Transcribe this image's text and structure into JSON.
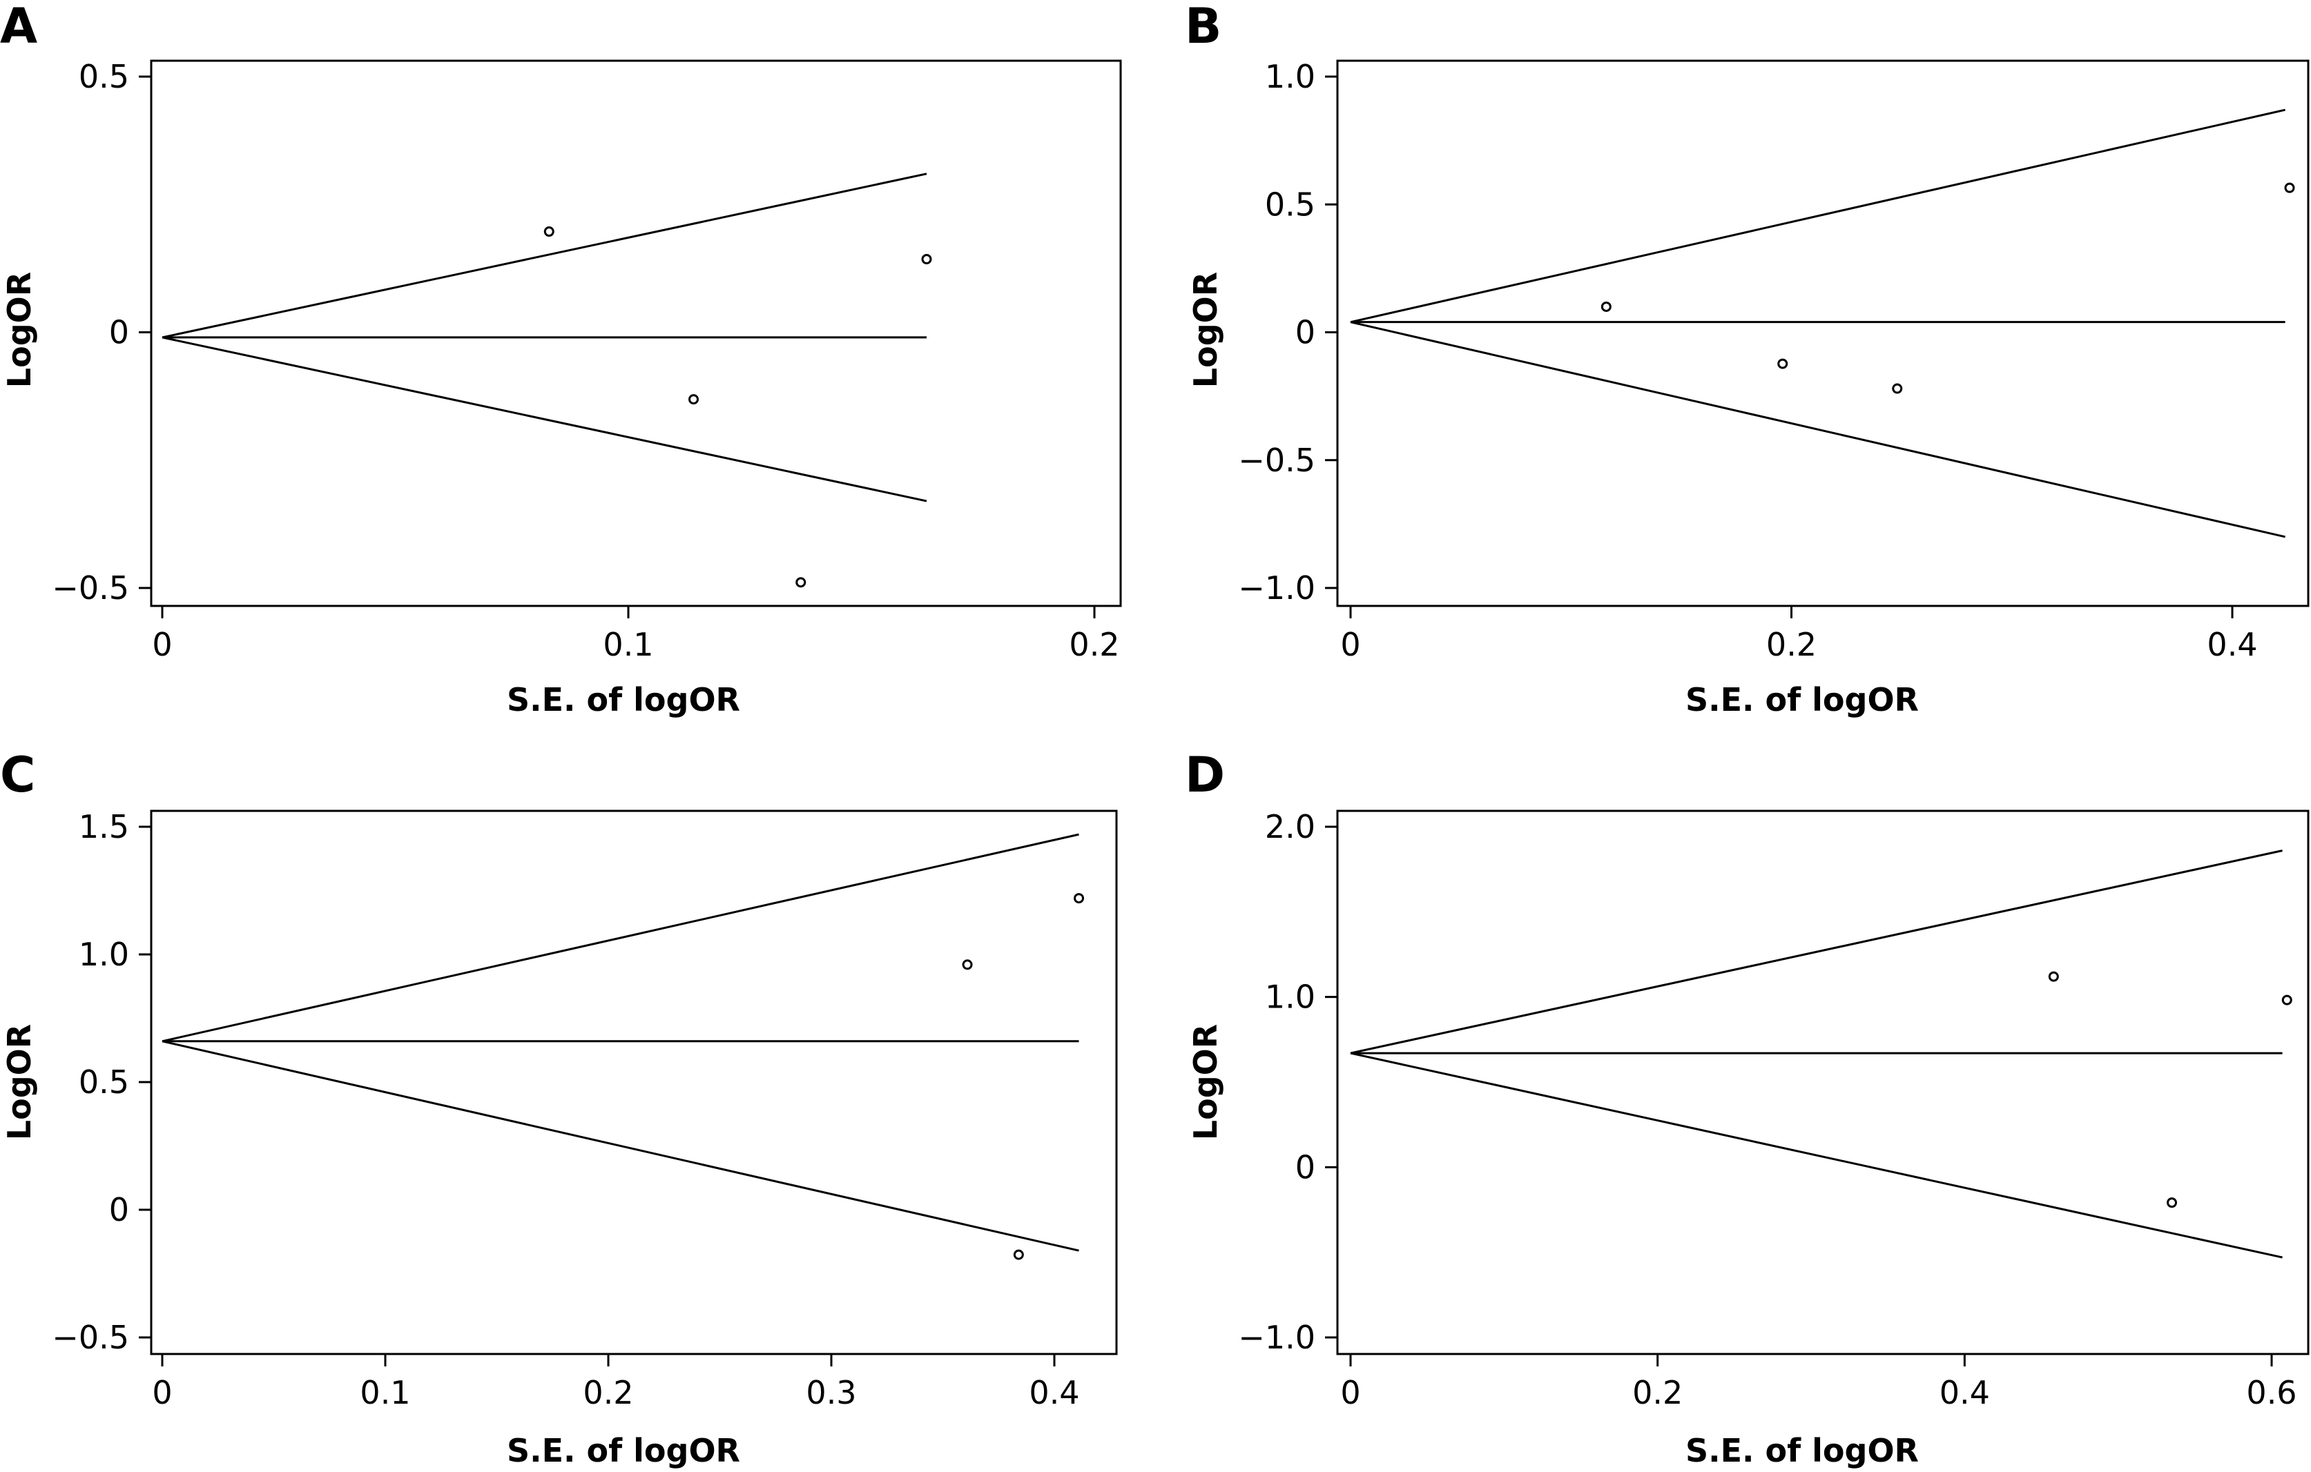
{
  "chart_data": [
    {
      "type": "scatter",
      "panel": "A",
      "xlabel": "S.E. of logOR",
      "ylabel": "LogOR",
      "xlim": [
        0,
        0.2
      ],
      "ylim": [
        -0.5,
        0.5
      ],
      "xticks": [
        {
          "v": 0,
          "label": "0"
        },
        {
          "v": 0.1,
          "label": "0.1"
        },
        {
          "v": 0.2,
          "label": "0.2"
        }
      ],
      "yticks": [
        {
          "v": 0.5,
          "label": "0.5"
        },
        {
          "v": 0,
          "label": "0"
        },
        {
          "v": -0.5,
          "label": "−0.5"
        }
      ],
      "points": [
        {
          "x": 0.083,
          "y": 0.197
        },
        {
          "x": 0.114,
          "y": -0.131
        },
        {
          "x": 0.137,
          "y": -0.489
        },
        {
          "x": 0.164,
          "y": 0.143
        }
      ],
      "funnel": {
        "center": -0.01,
        "se_max": 0.164,
        "upper_end": 0.31,
        "lower_end": -0.33
      }
    },
    {
      "type": "scatter",
      "panel": "B",
      "xlabel": "S.E. of logOR",
      "ylabel": "LogOR",
      "xlim": [
        0,
        0.43
      ],
      "ylim": [
        -1.0,
        1.0
      ],
      "xticks": [
        {
          "v": 0,
          "label": "0"
        },
        {
          "v": 0.2,
          "label": "0.2"
        },
        {
          "v": 0.4,
          "label": "0.4"
        }
      ],
      "yticks": [
        {
          "v": 1.0,
          "label": "1.0"
        },
        {
          "v": 0.5,
          "label": "0.5"
        },
        {
          "v": 0,
          "label": "0"
        },
        {
          "v": -0.5,
          "label": "−0.5"
        },
        {
          "v": -1.0,
          "label": "−1.0"
        }
      ],
      "points": [
        {
          "x": 0.116,
          "y": 0.1
        },
        {
          "x": 0.196,
          "y": -0.123
        },
        {
          "x": 0.248,
          "y": -0.22
        },
        {
          "x": 0.426,
          "y": 0.565
        }
      ],
      "funnel": {
        "center": 0.04,
        "se_max": 0.424,
        "upper_end": 0.87,
        "lower_end": -0.8
      }
    },
    {
      "type": "scatter",
      "panel": "C",
      "xlabel": "S.E. of logOR",
      "ylabel": "LogOR",
      "xlim": [
        0,
        0.42
      ],
      "ylim": [
        -0.5,
        1.5
      ],
      "xticks": [
        {
          "v": 0,
          "label": "0"
        },
        {
          "v": 0.1,
          "label": "0.1"
        },
        {
          "v": 0.2,
          "label": "0.2"
        },
        {
          "v": 0.3,
          "label": "0.3"
        },
        {
          "v": 0.4,
          "label": "0.4"
        }
      ],
      "yticks": [
        {
          "v": 1.5,
          "label": "1.5"
        },
        {
          "v": 1.0,
          "label": "1.0"
        },
        {
          "v": 0.5,
          "label": "0.5"
        },
        {
          "v": 0,
          "label": "0"
        },
        {
          "v": -0.5,
          "label": "−0.5"
        }
      ],
      "points": [
        {
          "x": 0.361,
          "y": 0.96
        },
        {
          "x": 0.384,
          "y": -0.176
        },
        {
          "x": 0.411,
          "y": 1.22
        }
      ],
      "funnel": {
        "center": 0.66,
        "se_max": 0.411,
        "upper_end": 1.47,
        "lower_end": -0.16
      }
    },
    {
      "type": "scatter",
      "panel": "D",
      "xlabel": "S.E. of logOR",
      "ylabel": "LogOR",
      "xlim": [
        0,
        0.61
      ],
      "ylim": [
        -1.0,
        2.0
      ],
      "xticks": [
        {
          "v": 0,
          "label": "0"
        },
        {
          "v": 0.2,
          "label": "0.2"
        },
        {
          "v": 0.4,
          "label": "0.4"
        },
        {
          "v": 0.6,
          "label": "0.6"
        }
      ],
      "yticks": [
        {
          "v": 2.0,
          "label": "2.0"
        },
        {
          "v": 1.0,
          "label": "1.0"
        },
        {
          "v": 0,
          "label": "0"
        },
        {
          "v": -1.0,
          "label": "−1.0"
        }
      ],
      "points": [
        {
          "x": 0.458,
          "y": 1.12
        },
        {
          "x": 0.535,
          "y": -0.208
        },
        {
          "x": 0.61,
          "y": 0.982
        }
      ],
      "funnel": {
        "center": 0.67,
        "se_max": 0.607,
        "upper_end": 1.86,
        "lower_end": -0.53
      }
    }
  ]
}
